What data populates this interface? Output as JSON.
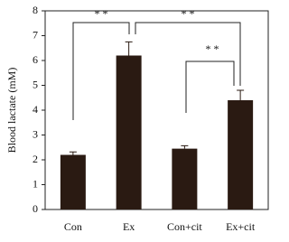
{
  "chart_data": {
    "type": "bar",
    "y_label": "Blood lactate (mM)",
    "categories": [
      "Con",
      "Ex",
      "Con+cit",
      "Ex+cit"
    ],
    "values": [
      2.2,
      6.2,
      2.45,
      4.4
    ],
    "errors": [
      0.12,
      0.55,
      0.12,
      0.4
    ],
    "color": "#2a1a12",
    "ylim": [
      0,
      8
    ],
    "yticks": [
      0,
      1,
      2,
      3,
      4,
      5,
      6,
      7,
      8
    ],
    "annotations": [
      "* *",
      "* *",
      "* *"
    ]
  }
}
